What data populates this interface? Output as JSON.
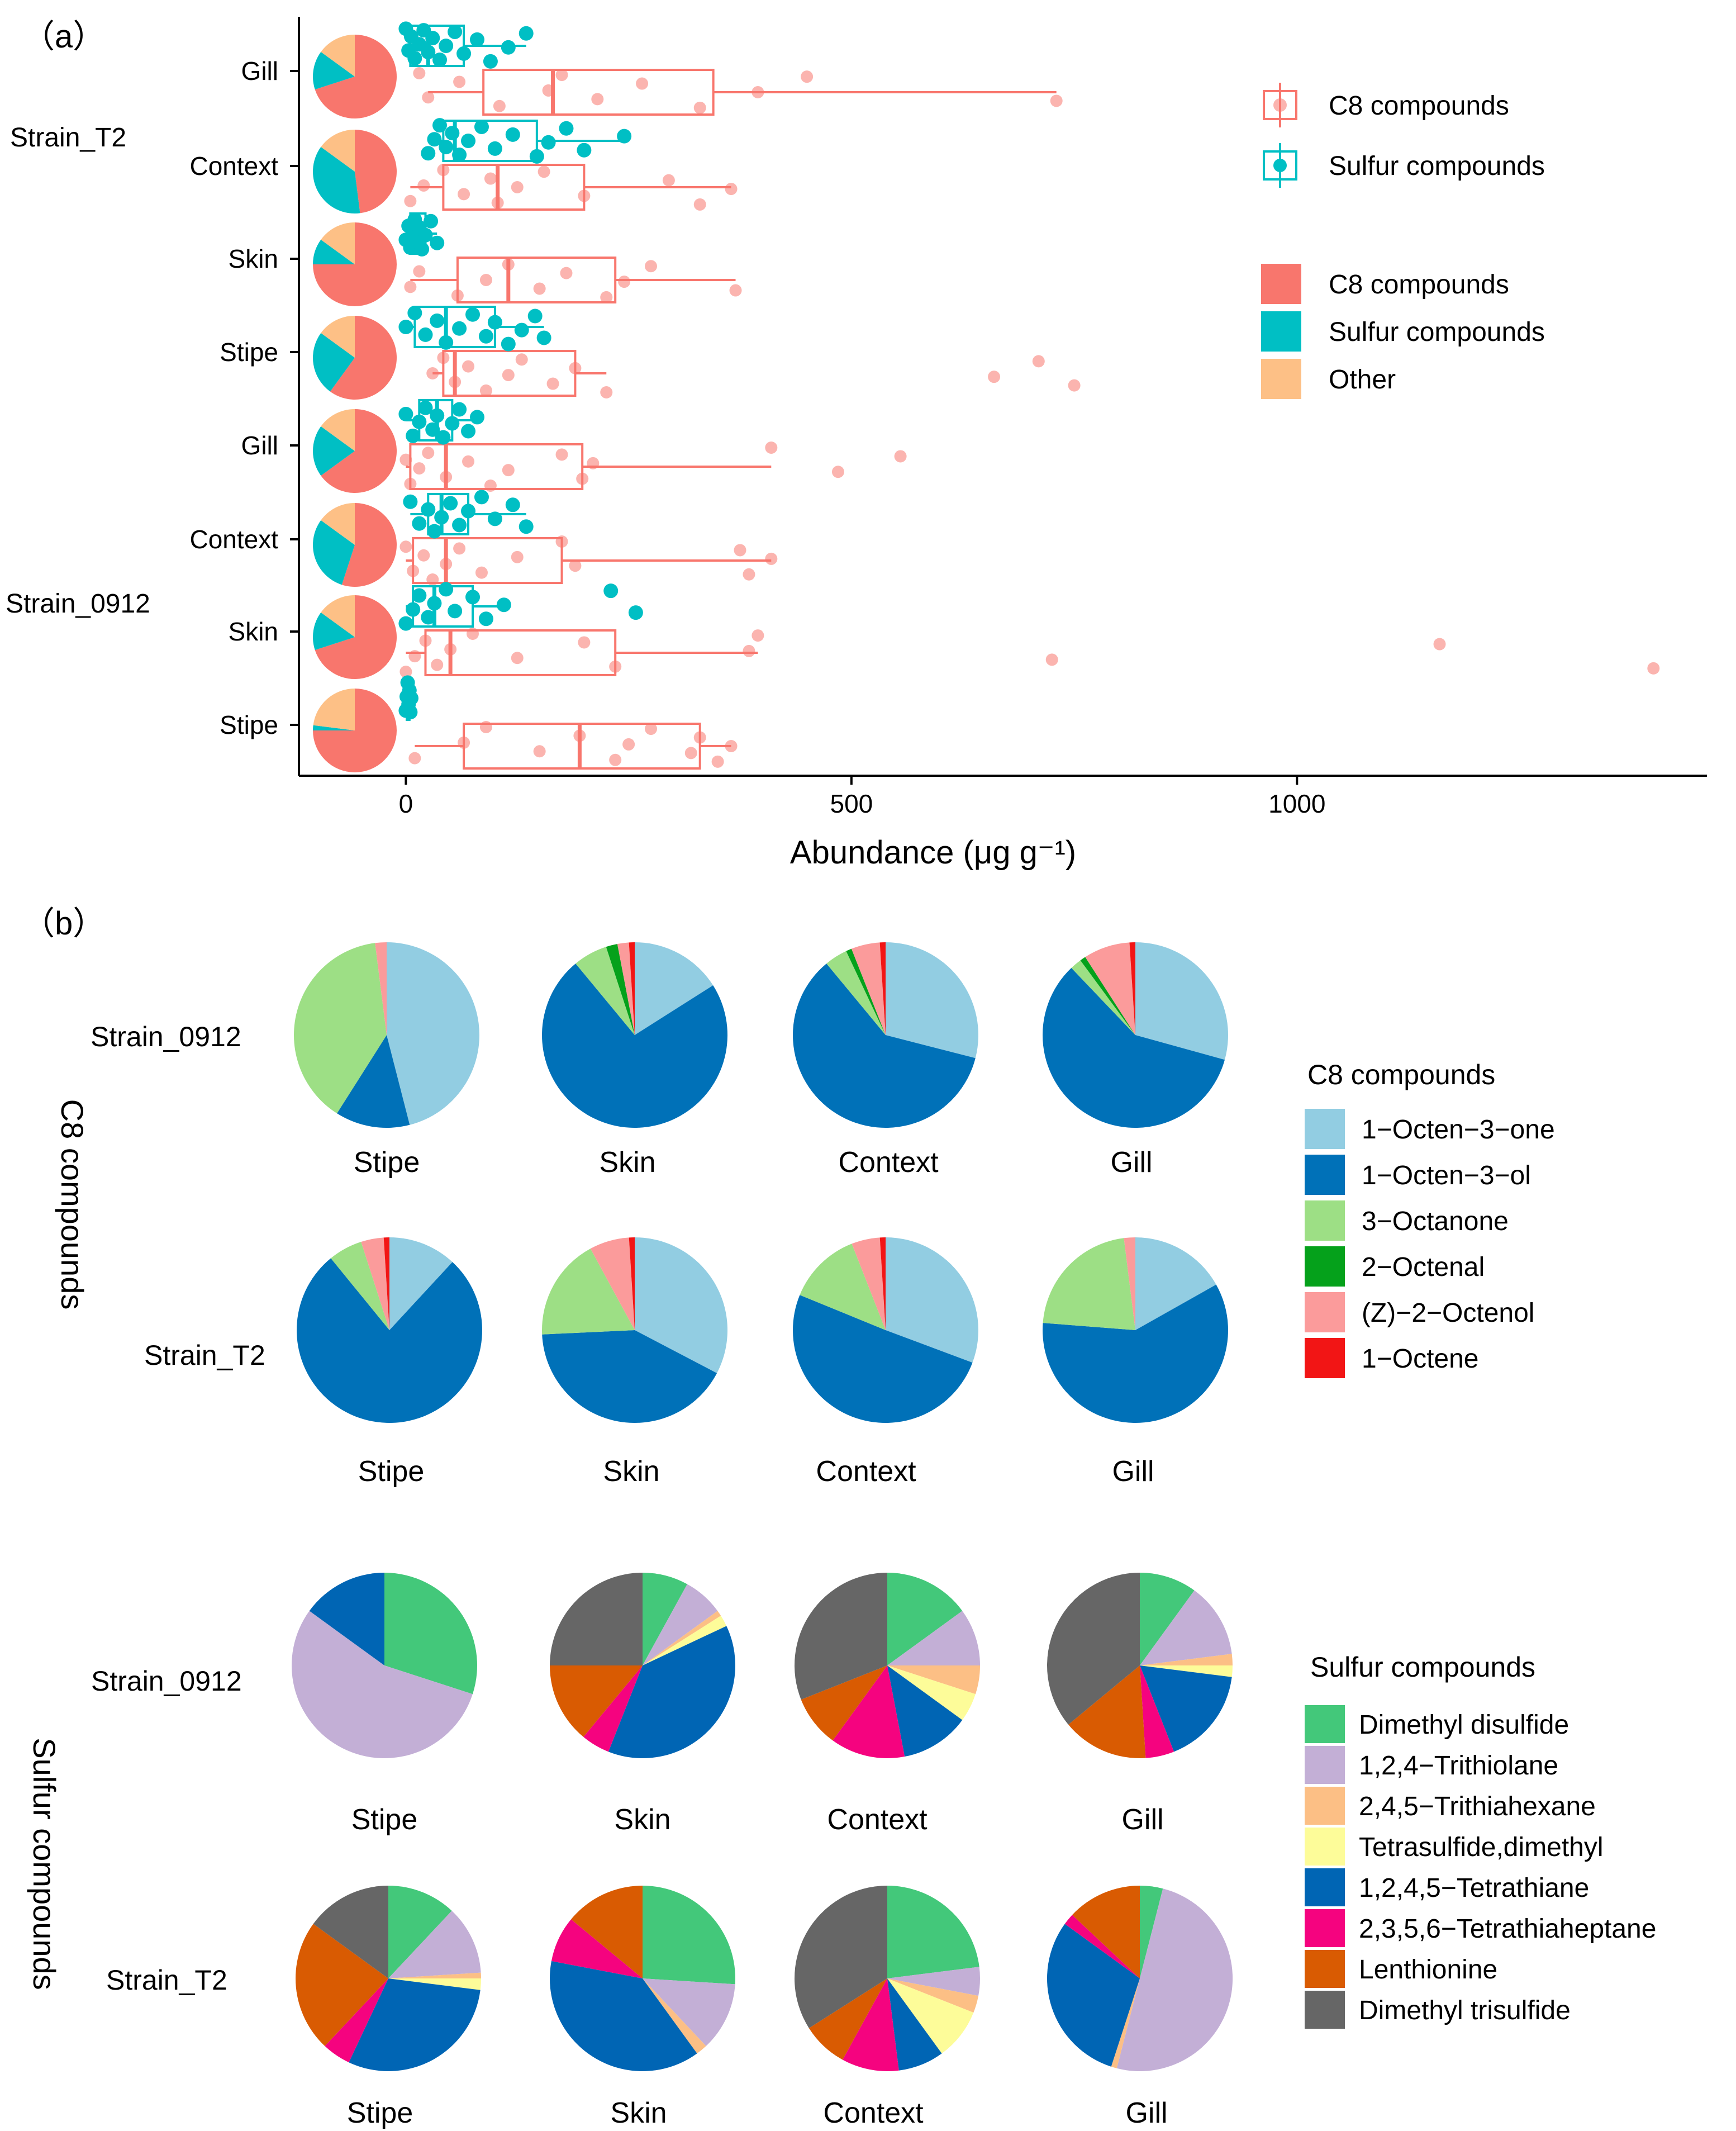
{
  "chart_data": [
    {
      "type": "boxplot-with-pies",
      "panel_label": "（a）",
      "xlabel": "Abundance (μg g⁻¹)",
      "xlim": [
        -120,
        1460
      ],
      "xticks": [
        0,
        500,
        1000
      ],
      "group_labels": [
        "Strain_T2",
        "Strain_0912"
      ],
      "rows": [
        {
          "label": "Gill",
          "group": "Strain_T2",
          "c8": {
            "q1": 87,
            "median": 165,
            "q3": 345,
            "whisker_low": 25,
            "whisker_high": 730,
            "points": [
              15,
              25,
              60,
              105,
              160,
              175,
              215,
              265,
              330,
              395,
              450,
              730
            ]
          },
          "sulfur": {
            "q1": 5,
            "median": 25,
            "q3": 65,
            "whisker_low": 0,
            "whisker_high": 135,
            "points": [
              0,
              3,
              6,
              10,
              15,
              20,
              25,
              30,
              38,
              45,
              55,
              65,
              80,
              95,
              115,
              135
            ]
          },
          "pie": {
            "C8 compounds": 0.7,
            "Sulfur compounds": 0.15,
            "Other": 0.15
          }
        },
        {
          "label": "Context",
          "group": "Strain_T2",
          "c8": {
            "q1": 42,
            "median": 103,
            "q3": 200,
            "whisker_low": 5,
            "whisker_high": 365,
            "points": [
              5,
              20,
              42,
              65,
              95,
              103,
              125,
              155,
              200,
              295,
              330,
              365
            ]
          },
          "sulfur": {
            "q1": 42,
            "median": 55,
            "q3": 147,
            "whisker_low": 25,
            "whisker_high": 245,
            "points": [
              25,
              32,
              38,
              45,
              52,
              60,
              70,
              85,
              100,
              120,
              147,
              160,
              180,
              200,
              245
            ]
          },
          "pie": {
            "C8 compounds": 0.48,
            "Sulfur compounds": 0.37,
            "Other": 0.15
          }
        },
        {
          "label": "Skin",
          "group": "Strain_T2",
          "c8": {
            "q1": 58,
            "median": 115,
            "q3": 235,
            "whisker_low": 5,
            "whisker_high": 370,
            "points": [
              5,
              15,
              58,
              90,
              115,
              150,
              180,
              225,
              245,
              275,
              370
            ]
          },
          "sulfur": {
            "q1": 5,
            "median": 12,
            "q3": 22,
            "whisker_low": 0,
            "whisker_high": 35,
            "points": [
              0,
              3,
              5,
              8,
              10,
              12,
              15,
              18,
              22,
              28,
              35
            ]
          },
          "pie": {
            "C8 compounds": 0.75,
            "Sulfur compounds": 0.1,
            "Other": 0.15
          }
        },
        {
          "label": "Stipe",
          "group": "Strain_T2",
          "c8": {
            "q1": 42,
            "median": 55,
            "q3": 190,
            "whisker_low": 30,
            "whisker_high": 225,
            "points": [
              30,
              42,
              55,
              70,
              90,
              115,
              130,
              165,
              190,
              225,
              660,
              710,
              750
            ]
          },
          "sulfur": {
            "q1": 10,
            "median": 45,
            "q3": 100,
            "whisker_low": 0,
            "whisker_high": 155,
            "points": [
              0,
              10,
              22,
              35,
              45,
              60,
              75,
              90,
              100,
              115,
              130,
              145,
              155
            ]
          },
          "pie": {
            "C8 compounds": 0.6,
            "Sulfur compounds": 0.25,
            "Other": 0.15
          }
        },
        {
          "label": "Gill",
          "group": "Strain_0912",
          "c8": {
            "q1": 5,
            "median": 45,
            "q3": 198,
            "whisker_low": 0,
            "whisker_high": 410,
            "points": [
              0,
              5,
              15,
              25,
              45,
              70,
              95,
              115,
              175,
              198,
              210,
              410,
              485,
              555
            ]
          },
          "sulfur": {
            "q1": 15,
            "median": 35,
            "q3": 52,
            "whisker_low": 0,
            "whisker_high": 80,
            "points": [
              0,
              8,
              15,
              22,
              30,
              35,
              42,
              52,
              60,
              70,
              80
            ]
          },
          "pie": {
            "C8 compounds": 0.65,
            "Sulfur compounds": 0.2,
            "Other": 0.15
          }
        },
        {
          "label": "Context",
          "group": "Strain_0912",
          "c8": {
            "q1": 8,
            "median": 45,
            "q3": 175,
            "whisker_low": 0,
            "whisker_high": 410,
            "points": [
              0,
              8,
              20,
              30,
              45,
              60,
              85,
              125,
              175,
              190,
              375,
              385,
              410
            ]
          },
          "sulfur": {
            "q1": 25,
            "median": 40,
            "q3": 70,
            "whisker_low": 5,
            "whisker_high": 135,
            "points": [
              5,
              15,
              25,
              32,
              40,
              50,
              60,
              70,
              85,
              100,
              120,
              135
            ]
          },
          "pie": {
            "C8 compounds": 0.55,
            "Sulfur compounds": 0.3,
            "Other": 0.15
          }
        },
        {
          "label": "Skin",
          "group": "Strain_0912",
          "c8": {
            "q1": 22,
            "median": 50,
            "q3": 235,
            "whisker_low": 0,
            "whisker_high": 395,
            "points": [
              0,
              10,
              22,
              35,
              50,
              75,
              125,
              200,
              235,
              385,
              395,
              725,
              1160,
              1400
            ]
          },
          "sulfur": {
            "q1": 8,
            "median": 32,
            "q3": 75,
            "whisker_low": 0,
            "whisker_high": 110,
            "points": [
              0,
              8,
              15,
              25,
              32,
              45,
              55,
              75,
              90,
              110,
              230,
              258
            ]
          },
          "pie": {
            "C8 compounds": 0.7,
            "Sulfur compounds": 0.15,
            "Other": 0.15
          }
        },
        {
          "label": "Stipe",
          "group": "Strain_0912",
          "c8": {
            "q1": 65,
            "median": 195,
            "q3": 330,
            "whisker_low": 10,
            "whisker_high": 365,
            "points": [
              10,
              65,
              90,
              150,
              195,
              235,
              250,
              275,
              320,
              330,
              350,
              365
            ]
          },
          "sulfur": {
            "q1": 1,
            "median": 2,
            "q3": 4,
            "whisker_low": 0,
            "whisker_high": 6,
            "points": [
              0,
              1,
              2,
              3,
              4,
              5,
              6
            ]
          },
          "pie": {
            "C8 compounds": 0.75,
            "Sulfur compounds": 0.02,
            "Other": 0.23
          }
        }
      ],
      "legend_box": [
        {
          "label": "C8 compounds",
          "color": "#f8766d"
        },
        {
          "label": "Sulfur compounds",
          "color": "#00bfc4"
        }
      ],
      "legend_fill": [
        {
          "label": "C8 compounds",
          "color": "#f8766d"
        },
        {
          "label": "Sulfur compounds",
          "color": "#00bfc4"
        },
        {
          "label": "Other",
          "color": "#fdc086"
        }
      ]
    },
    {
      "type": "pie",
      "panel_label": "（b）",
      "section_labels": [
        "C8 compounds",
        "Sulfur compounds"
      ],
      "c8_legend": {
        "title": "C8 compounds",
        "items": [
          {
            "label": "1−Octen−3−one",
            "color": "#92cde2"
          },
          {
            "label": "1−Octen−3−ol",
            "color": "#0071b8"
          },
          {
            "label": "3−Octanone",
            "color": "#9ddf85"
          },
          {
            "label": "2−Octenal",
            "color": "#05a11b"
          },
          {
            "label": "(Z)−2−Octenol",
            "color": "#fb9b9b"
          },
          {
            "label": "1−Octene",
            "color": "#f21515"
          }
        ]
      },
      "sulfur_legend": {
        "title": "Sulfur compounds",
        "items": [
          {
            "label": "Dimethyl disulfide",
            "color": "#43c87a"
          },
          {
            "label": "1,2,4−Trithiolane",
            "color": "#c3afd6"
          },
          {
            "label": "2,4,5−Trithiahexane",
            "color": "#fcbf85"
          },
          {
            "label": "Tetrasulfide,dimethyl",
            "color": "#fdfc99"
          },
          {
            "label": "1,2,4,5−Tetrathiane",
            "color": "#0065b4"
          },
          {
            "label": "2,3,5,6−Tetrathiaheptane",
            "color": "#f5037f"
          },
          {
            "label": "Lenthionine",
            "color": "#d95b02"
          },
          {
            "label": "Dimethyl trisulfide",
            "color": "#666666"
          }
        ]
      },
      "c8_rows": [
        {
          "row": "Strain_0912",
          "pies": [
            {
              "label": "Stipe",
              "values": [
                0.46,
                0.13,
                0.39,
                0,
                0.02,
                0
              ]
            },
            {
              "label": "Skin",
              "values": [
                0.16,
                0.73,
                0.06,
                0.02,
                0.02,
                0.01
              ]
            },
            {
              "label": "Context",
              "values": [
                0.29,
                0.6,
                0.04,
                0.01,
                0.05,
                0.01
              ]
            },
            {
              "label": "Gill",
              "values": [
                0.29,
                0.58,
                0.02,
                0.01,
                0.08,
                0.01
              ]
            }
          ]
        },
        {
          "row": "Strain_T2",
          "pies": [
            {
              "label": "Stipe",
              "values": [
                0.12,
                0.78,
                0.06,
                0,
                0.04,
                0.01
              ]
            },
            {
              "label": "Skin",
              "values": [
                0.33,
                0.42,
                0.18,
                0,
                0.07,
                0.01
              ]
            },
            {
              "label": "Context",
              "values": [
                0.31,
                0.51,
                0.13,
                0,
                0.05,
                0.01
              ]
            },
            {
              "label": "Gill",
              "values": [
                0.17,
                0.6,
                0.22,
                0,
                0.02,
                0
              ]
            }
          ]
        }
      ],
      "sulfur_rows": [
        {
          "row": "Strain_0912",
          "pies": [
            {
              "label": "Stipe",
              "values": [
                0.3,
                0.55,
                0,
                0,
                0.15,
                0,
                0,
                0
              ]
            },
            {
              "label": "Skin",
              "values": [
                0.08,
                0.07,
                0.01,
                0.02,
                0.38,
                0.05,
                0.14,
                0.25
              ]
            },
            {
              "label": "Context",
              "values": [
                0.15,
                0.1,
                0.05,
                0.05,
                0.12,
                0.13,
                0.09,
                0.31
              ]
            },
            {
              "label": "Gill",
              "values": [
                0.1,
                0.13,
                0.02,
                0.02,
                0.17,
                0.05,
                0.15,
                0.36
              ]
            }
          ]
        },
        {
          "row": "Strain_T2",
          "pies": [
            {
              "label": "Stipe",
              "values": [
                0.12,
                0.12,
                0.01,
                0.02,
                0.3,
                0.05,
                0.23,
                0.15
              ]
            },
            {
              "label": "Skin",
              "values": [
                0.26,
                0.12,
                0.02,
                0,
                0.38,
                0.08,
                0.14,
                0
              ]
            },
            {
              "label": "Context",
              "values": [
                0.23,
                0.05,
                0.03,
                0.09,
                0.08,
                0.1,
                0.08,
                0.34
              ]
            },
            {
              "label": "Gill",
              "values": [
                0.04,
                0.5,
                0.01,
                0,
                0.3,
                0.02,
                0.13,
                0
              ]
            }
          ]
        }
      ]
    }
  ]
}
